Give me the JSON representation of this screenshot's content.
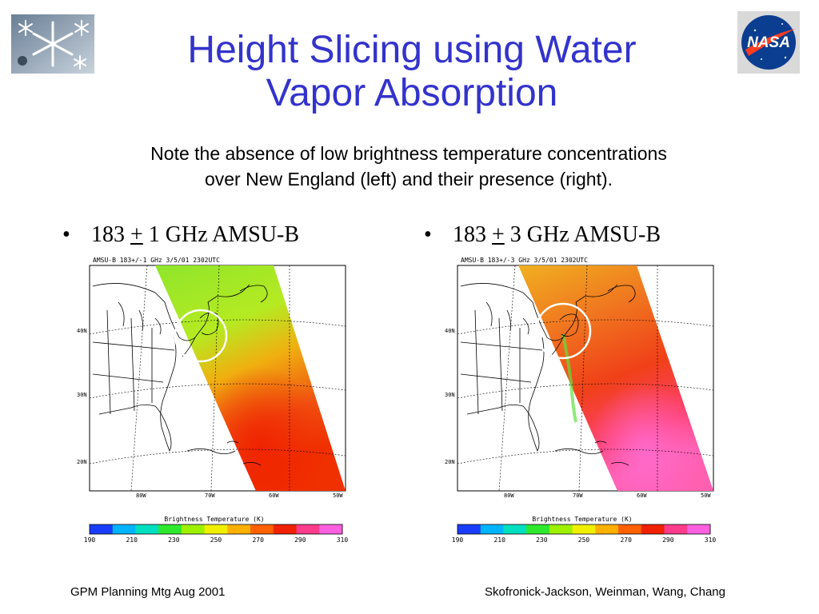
{
  "slide": {
    "title_line1": "Height Slicing using Water",
    "title_line2": "Vapor Absorption",
    "subtitle_line1": "Note the absence of low brightness temperature concentrations",
    "subtitle_line2": "over New England (left) and their presence (right).",
    "bullets": [
      {
        "bullet": "•",
        "prefix": "183",
        "pm": "+",
        "suffix": "1 GHz AMSU-B"
      },
      {
        "bullet": "•",
        "prefix": "183",
        "pm": "+",
        "suffix": "3 GHz AMSU-B"
      }
    ],
    "footer_left": "GPM Planning Mtg Aug 2001",
    "footer_right": "Skofronick-Jackson, Weinman, Wang, Chang",
    "logo_text": "NASA"
  },
  "maps": [
    {
      "caption": "AMSU-B 183+/-1 GHz 3/5/01 2302UTC"
    },
    {
      "caption": "AMSU-B 183+/-3 GHz 3/5/01 2302UTC"
    }
  ],
  "map_axes": {
    "lat_labels": [
      "40N",
      "30N",
      "20N"
    ],
    "lon_labels": [
      "80W",
      "70W",
      "60W",
      "50W"
    ],
    "colorbar_title": "Brightness Temperature (K)",
    "colorbar_ticks": [
      "190",
      "210",
      "230",
      "250",
      "270",
      "290",
      "310"
    ],
    "colorbar_colors": [
      "#1a3cff",
      "#00b4ff",
      "#00e0c0",
      "#2ee82e",
      "#9cf000",
      "#f0f000",
      "#ffb000",
      "#ff6000",
      "#f02000",
      "#ff3c8c",
      "#ff60e0"
    ]
  },
  "colors": {
    "title": "#3333cc",
    "nasa_blue": "#0b3d91",
    "nasa_red": "#fc3d21"
  }
}
